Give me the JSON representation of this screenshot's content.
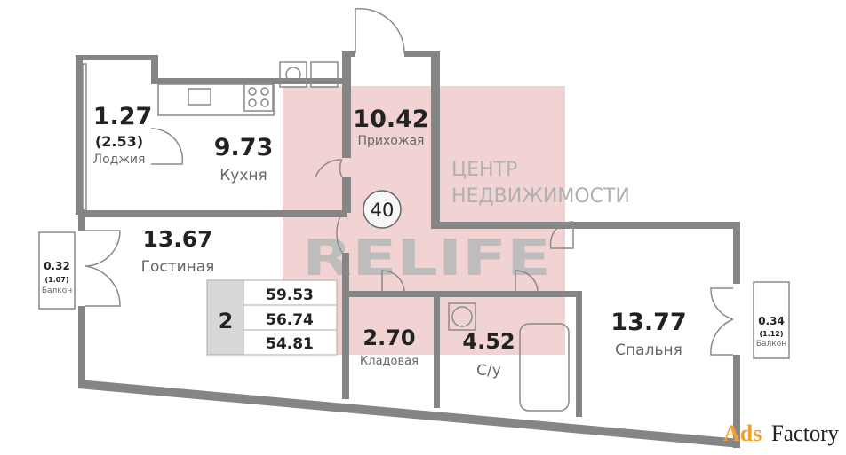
{
  "colors": {
    "wall": "#858585",
    "watermark_bg": "#f2d3d3",
    "watermark_text": "#bdbdbd",
    "summary_box": "#d8d8d8",
    "ads_orange": "#f0a030"
  },
  "rooms": {
    "loggia": {
      "area": "1.27",
      "area_total": "(2.53)",
      "name": "Лоджия"
    },
    "kitchen": {
      "area": "9.73",
      "name": "Кухня"
    },
    "hall": {
      "area": "10.42",
      "name": "Прихожая"
    },
    "living": {
      "area": "13.67",
      "name": "Гостиная"
    },
    "balcony_left": {
      "area": "0.32",
      "area_total": "(1.07)",
      "name": "Балкон"
    },
    "storage": {
      "area": "2.70",
      "name": "Кладовая"
    },
    "bathroom": {
      "area": "4.52",
      "name": "С/у"
    },
    "bedroom": {
      "area": "13.77",
      "name": "Спальня"
    },
    "balcony_right": {
      "area": "0.34",
      "area_total": "(1.12)",
      "name": "Балкон"
    }
  },
  "apartment_number": "40",
  "summary": {
    "rooms": "2",
    "areas": [
      "59.53",
      "56.74",
      "54.81"
    ]
  },
  "watermarks": {
    "brand": "RELIFE",
    "line1": "ЦЕНТР",
    "line2": "НЕДВИЖИМОСТИ",
    "site_a": "Ads",
    "site_b": "Factory"
  }
}
